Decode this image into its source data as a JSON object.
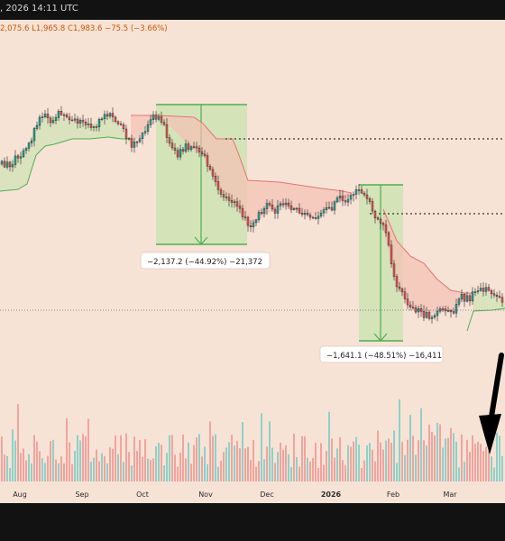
{
  "header": {
    "timestamp": ", 2026 14:11 UTC",
    "ohlc": "2,075.6  L1,965.8  C1,983.6  −75.5 (−3.66%)"
  },
  "annotations": {
    "drop1": "−2,137.2 (−44.92%) −21,372",
    "drop2": "−1,641.1 (−48.51%) −16,411"
  },
  "chart_data": {
    "type": "candlestick",
    "x_tick_labels": [
      "Aug",
      "Sep",
      "Oct",
      "Nov",
      "Dec",
      "2026",
      "Feb",
      "Mar"
    ],
    "ohlc_legend": {
      "high_partial": "2,075.6",
      "low": "1,965.8",
      "close": "1,983.6",
      "change": "−75.5",
      "change_pct": "−3.66%"
    },
    "measurements": [
      {
        "label": "−2,137.2 (−44.92%) −21,372",
        "change": -2137.2,
        "change_pct": -44.92,
        "bars": -21372,
        "approx_start": "Oct",
        "approx_end": "Nov"
      },
      {
        "label": "−1,641.1 (−48.51%) −16,411",
        "change": -1641.1,
        "change_pct": -48.51,
        "bars": -16411,
        "approx_start": "Jan 2026",
        "approx_end": "Feb"
      }
    ],
    "reference_lines": {
      "style": "dotted",
      "count": 3
    },
    "overlays": [
      "supertrend-style trailing stop (green below price, red above price)",
      "volume histogram"
    ],
    "colors": {
      "up": "#26a69a",
      "down": "#ef5350",
      "background": "#f7e3d6",
      "measure_fill": "#cfe3b4",
      "measure_line": "#4caf50",
      "resist_fill": "#f4c1b4",
      "support_fill": "#cfe3b4"
    },
    "grid": false
  }
}
